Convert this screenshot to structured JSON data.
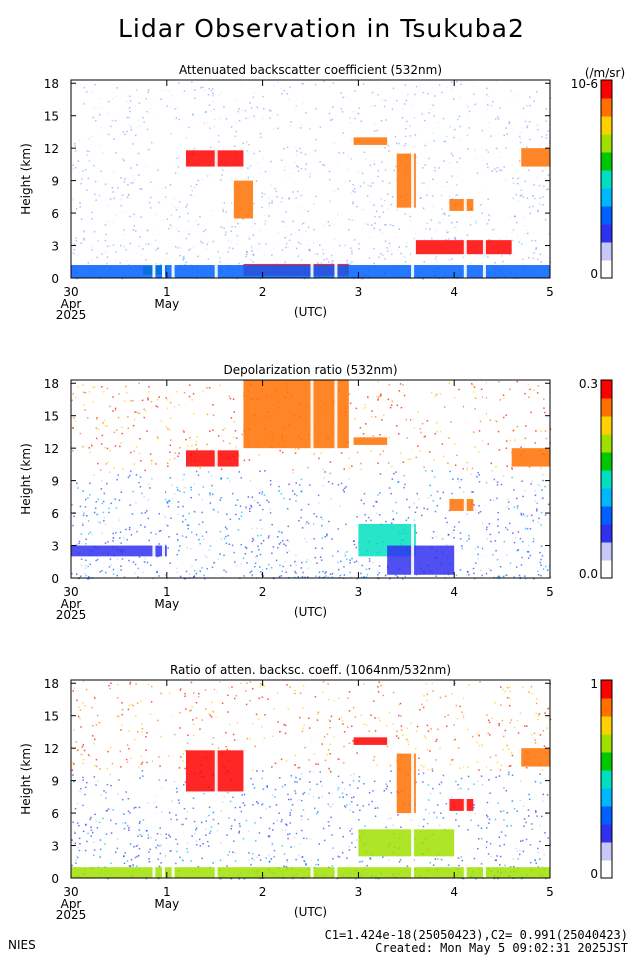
{
  "page": {
    "title": "Lidar Observation in Tsukuba2",
    "footer_left": "NIES",
    "footer_line1": "C1=1.424e-18(25050423),C2= 0.991(25040423)",
    "footer_line2": "Created: Mon May  5 09:02:31 2025JST"
  },
  "colors": {
    "scale": [
      "#ffffff",
      "#c8c8f8",
      "#3030f0",
      "#0060ff",
      "#00b8ff",
      "#00e0c0",
      "#00c800",
      "#a0e000",
      "#ffd000",
      "#ff7000",
      "#ff0000"
    ]
  },
  "chart_data": [
    {
      "type": "heatmap",
      "title": "Attenuated backscatter coefficient (532nm)",
      "ylabel": "Height (km)",
      "xlabel": "(UTC)",
      "yticks": [
        "0",
        "3",
        "6",
        "9",
        "12",
        "15",
        "18"
      ],
      "ylim": [
        0,
        18.3
      ],
      "xticks": [
        "30",
        "1",
        "2",
        "3",
        "4",
        "5"
      ],
      "xticks_sub": [
        "Apr",
        "May",
        "",
        "",
        "",
        ""
      ],
      "year": "2025",
      "colorbar": {
        "label": "(/m/sr)",
        "max": "10-6",
        "min": "0"
      },
      "clouds": [
        {
          "x0": 0.75,
          "x1": 1.0,
          "y0": 0.3,
          "y1": 1.1,
          "level": 0.55
        },
        {
          "x0": 1.2,
          "x1": 1.8,
          "y0": 10.3,
          "y1": 11.8,
          "level": 0.95
        },
        {
          "x0": 1.7,
          "x1": 1.9,
          "y0": 5.5,
          "y1": 9.0,
          "level": 0.9
        },
        {
          "x0": 1.8,
          "x1": 2.9,
          "y0": 0.2,
          "y1": 1.3,
          "level": 0.95
        },
        {
          "x0": 2.95,
          "x1": 3.3,
          "y0": 12.3,
          "y1": 13.0,
          "level": 0.9
        },
        {
          "x0": 3.4,
          "x1": 3.6,
          "y0": 6.5,
          "y1": 11.5,
          "level": 0.85
        },
        {
          "x0": 3.6,
          "x1": 4.6,
          "y0": 2.2,
          "y1": 3.5,
          "level": 0.95
        },
        {
          "x0": 3.95,
          "x1": 4.2,
          "y0": 6.2,
          "y1": 7.3,
          "level": 0.9
        },
        {
          "x0": 4.7,
          "x1": 5.0,
          "y0": 10.3,
          "y1": 12.0,
          "level": 0.85
        },
        {
          "x0": 0.0,
          "x1": 5.0,
          "y0": 0.0,
          "y1": 1.2,
          "level": 0.3
        }
      ]
    },
    {
      "type": "heatmap",
      "title": "Depolarization ratio (532nm)",
      "ylabel": "Height (km)",
      "xlabel": "(UTC)",
      "yticks": [
        "0",
        "3",
        "6",
        "9",
        "12",
        "15",
        "18"
      ],
      "ylim": [
        0,
        18.3
      ],
      "xticks": [
        "30",
        "1",
        "2",
        "3",
        "4",
        "5"
      ],
      "xticks_sub": [
        "Apr",
        "May",
        "",
        "",
        "",
        ""
      ],
      "year": "2025",
      "colorbar": {
        "label": "",
        "max": "0.3",
        "min": "0.0"
      },
      "clouds": [
        {
          "x0": 1.2,
          "x1": 1.75,
          "y0": 10.3,
          "y1": 11.8,
          "level": 0.95
        },
        {
          "x0": 1.8,
          "x1": 2.9,
          "y0": 12.0,
          "y1": 18.3,
          "level": 0.9
        },
        {
          "x0": 2.95,
          "x1": 3.3,
          "y0": 12.3,
          "y1": 13.0,
          "level": 0.9
        },
        {
          "x0": 3.0,
          "x1": 3.6,
          "y0": 2.0,
          "y1": 5.0,
          "level": 0.45
        },
        {
          "x0": 3.95,
          "x1": 4.2,
          "y0": 6.2,
          "y1": 7.3,
          "level": 0.9
        },
        {
          "x0": 4.6,
          "x1": 5.0,
          "y0": 10.3,
          "y1": 12.0,
          "level": 0.9
        },
        {
          "x0": 0.0,
          "x1": 1.0,
          "y0": 2.0,
          "y1": 3.0,
          "level": 0.15
        },
        {
          "x0": 3.3,
          "x1": 4.0,
          "y0": 0.3,
          "y1": 3.0,
          "level": 0.2
        }
      ]
    },
    {
      "type": "heatmap",
      "title": "Ratio of atten. backsc. coeff. (1064nm/532nm)",
      "ylabel": "Height (km)",
      "xlabel": "(UTC)",
      "yticks": [
        "0",
        "3",
        "6",
        "9",
        "12",
        "15",
        "18"
      ],
      "ylim": [
        0,
        18.3
      ],
      "xticks": [
        "30",
        "1",
        "2",
        "3",
        "4",
        "5"
      ],
      "xticks_sub": [
        "Apr",
        "May",
        "",
        "",
        "",
        ""
      ],
      "year": "2025",
      "colorbar": {
        "label": "",
        "max": "1",
        "min": "0"
      },
      "clouds": [
        {
          "x0": 1.2,
          "x1": 1.8,
          "y0": 8.0,
          "y1": 11.8,
          "level": 0.95
        },
        {
          "x0": 2.95,
          "x1": 3.3,
          "y0": 12.3,
          "y1": 13.0,
          "level": 0.95
        },
        {
          "x0": 3.4,
          "x1": 3.6,
          "y0": 6.0,
          "y1": 11.5,
          "level": 0.9
        },
        {
          "x0": 3.95,
          "x1": 4.2,
          "y0": 6.2,
          "y1": 7.3,
          "level": 0.95
        },
        {
          "x0": 4.7,
          "x1": 5.0,
          "y0": 10.3,
          "y1": 12.0,
          "level": 0.9
        },
        {
          "x0": 3.0,
          "x1": 4.0,
          "y0": 2.0,
          "y1": 4.5,
          "level": 0.65
        },
        {
          "x0": 0.0,
          "x1": 5.0,
          "y0": 0.0,
          "y1": 1.0,
          "level": 0.7
        }
      ]
    }
  ]
}
